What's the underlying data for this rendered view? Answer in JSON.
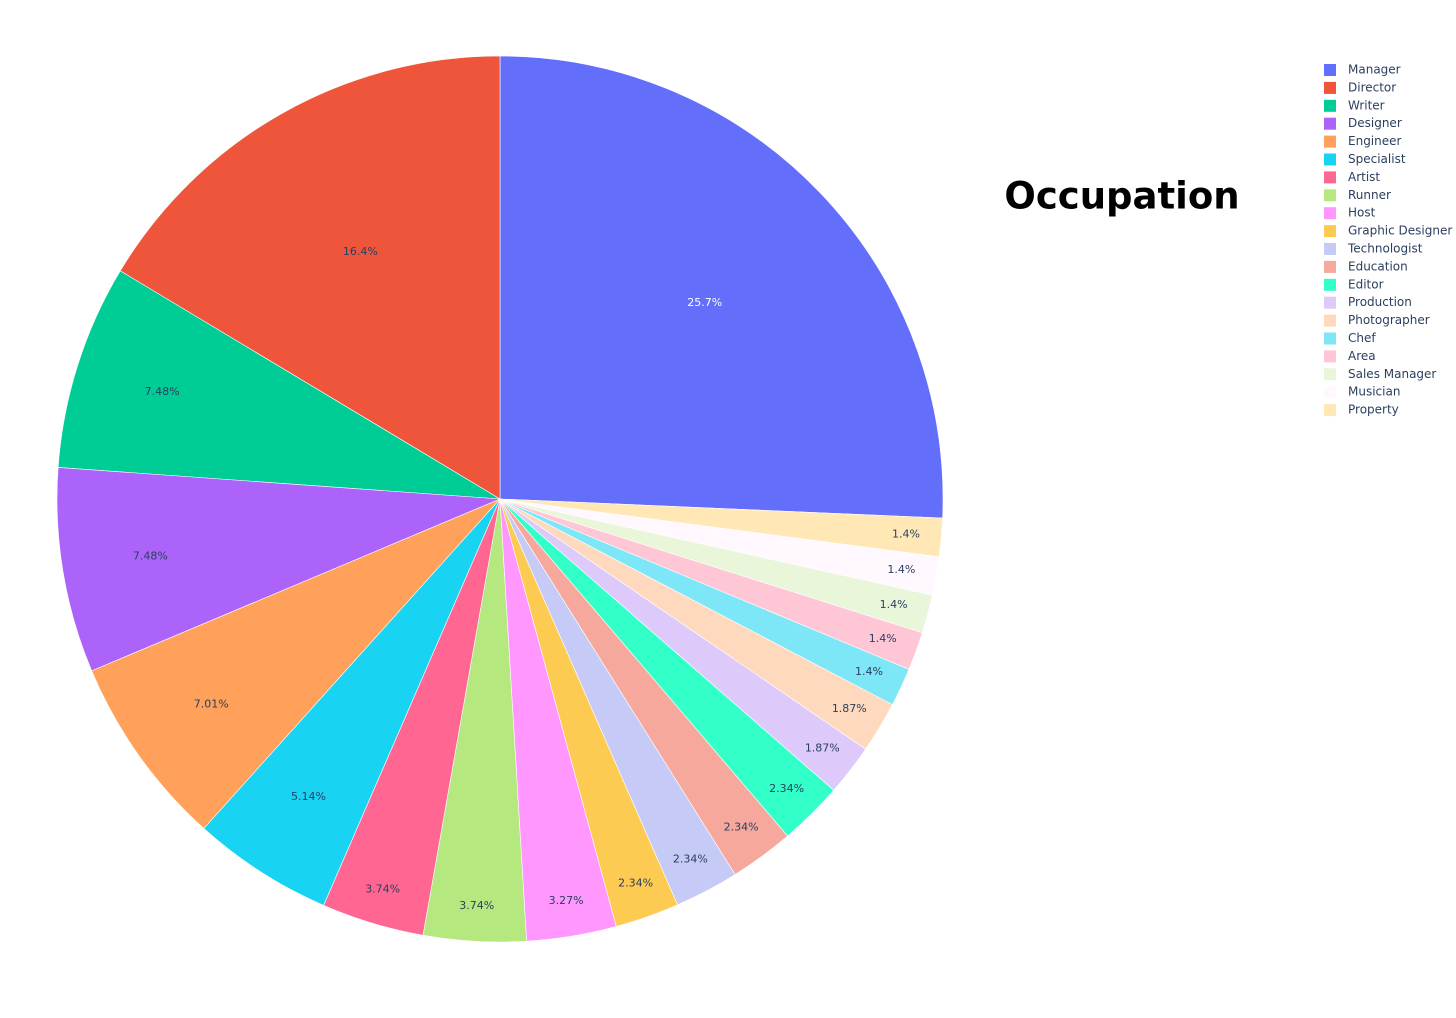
{
  "chart_data": {
    "type": "pie",
    "title": "Occupation",
    "categories": [
      "Manager",
      "Director",
      "Writer",
      "Designer",
      "Engineer",
      "Specialist",
      "Artist",
      "Runner",
      "Host",
      "Graphic Designer",
      "Technologist",
      "Education",
      "Editor",
      "Production",
      "Photographer",
      "Chef",
      "Area",
      "Sales Manager",
      "Musician",
      "Property"
    ],
    "values": [
      25.7,
      16.4,
      7.48,
      7.48,
      7.01,
      5.14,
      3.74,
      3.74,
      3.27,
      2.34,
      2.34,
      2.34,
      2.34,
      1.87,
      1.87,
      1.4,
      1.4,
      1.4,
      1.4,
      1.4
    ],
    "value_labels": [
      "25.7%",
      "16.4%",
      "7.48%",
      "7.48%",
      "7.01%",
      "5.14%",
      "3.74%",
      "3.74%",
      "3.27%",
      "2.34%",
      "2.34%",
      "2.34%",
      "2.34%",
      "1.87%",
      "1.87%",
      "1.4%",
      "1.4%",
      "1.4%",
      "1.4%",
      "1.4%"
    ],
    "colors": [
      "#636efa",
      "#ef553b",
      "#00cc96",
      "#ab63fa",
      "#ffa15a",
      "#19d3f3",
      "#ff6692",
      "#b6e880",
      "#ff97ff",
      "#fecb52",
      "#c6caf6",
      "#f5a89b",
      "#33ffc9",
      "#dec9fb",
      "#ffd9bd",
      "#7de6f7",
      "#ffc6d6",
      "#e9f6d9",
      "#fff8ff",
      "#ffe8b5"
    ],
    "direction": "counterclockwise",
    "legend": "top-right"
  }
}
